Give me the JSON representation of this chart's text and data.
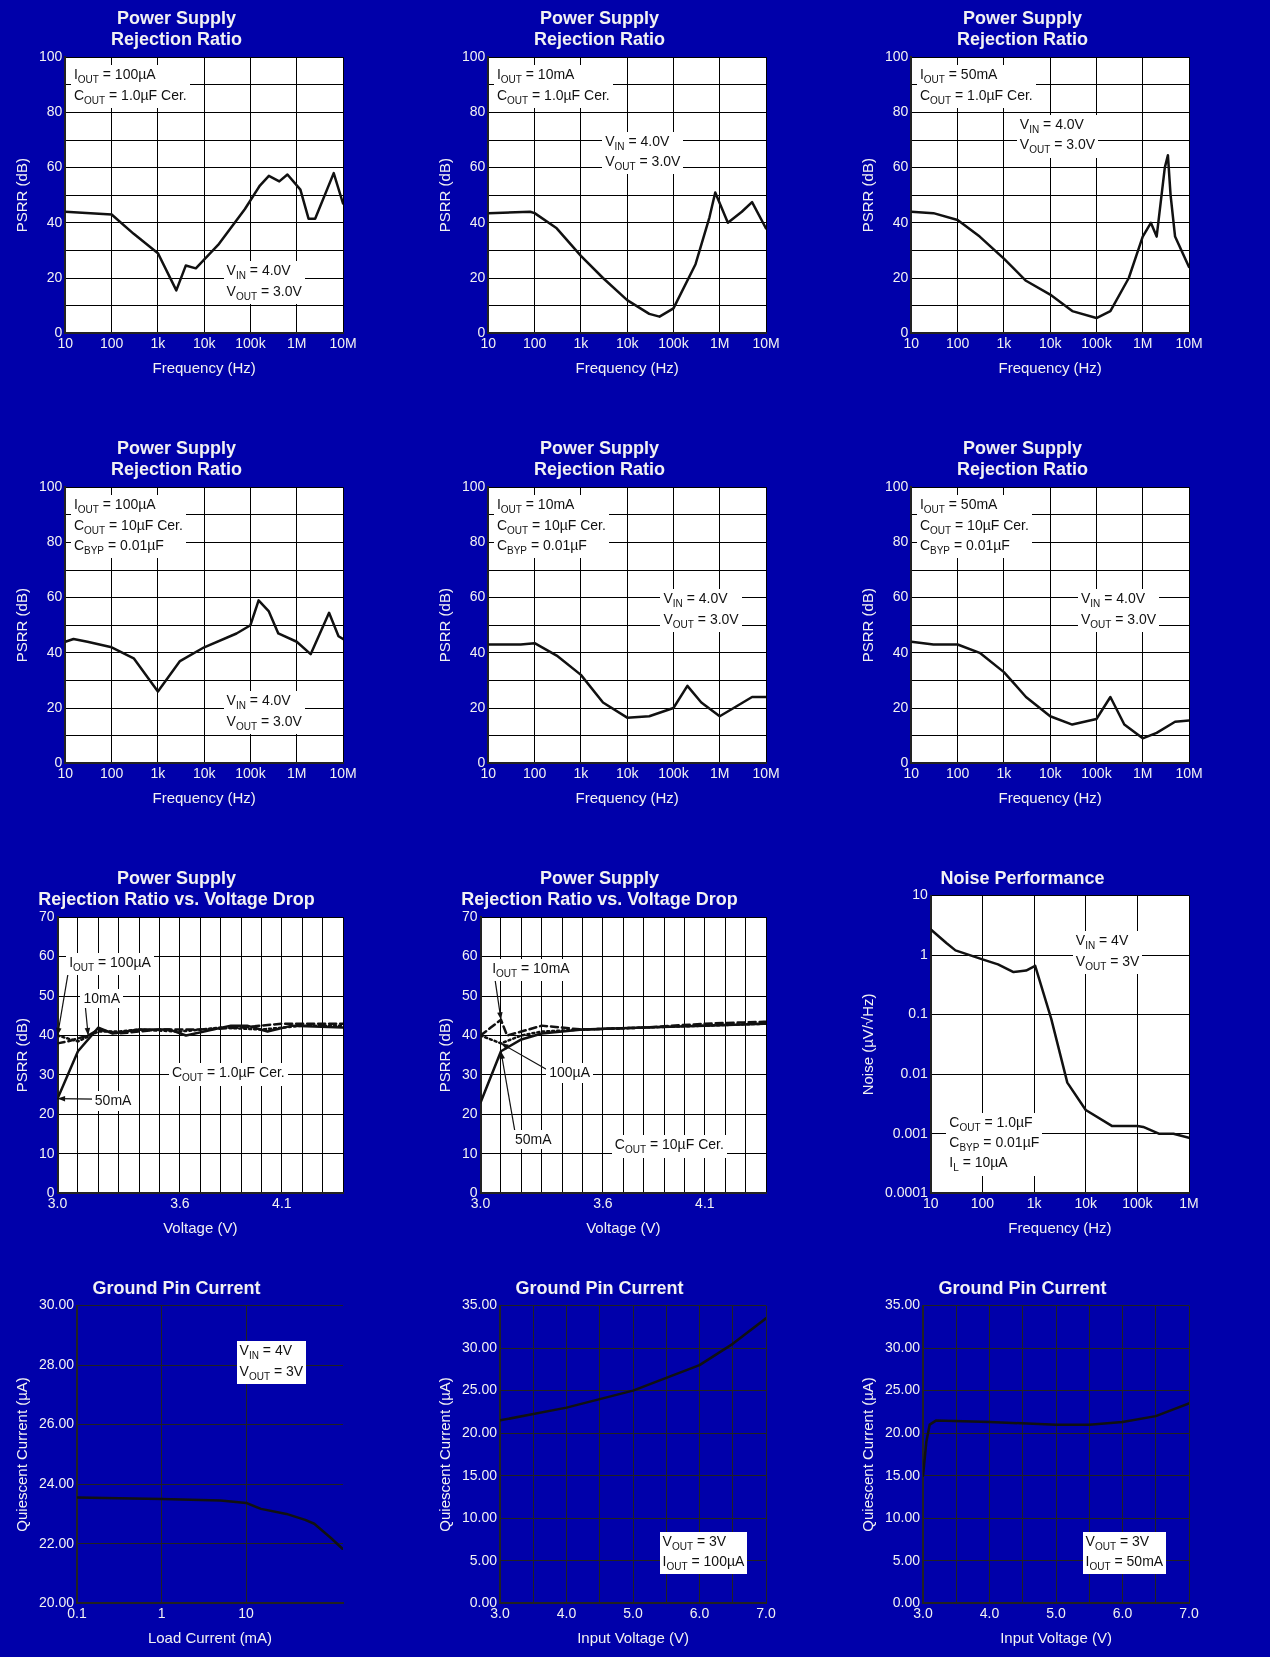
{
  "chart_data": [
    {
      "type": "line",
      "title": "Power Supply\nRejection Ratio",
      "xlabel": "Frequency (Hz)",
      "ylabel": "PSRR (dB)",
      "log": "x",
      "grid": true,
      "xlim": [
        10,
        10000000
      ],
      "ylim": [
        0,
        100
      ],
      "xticks": [
        10,
        100,
        {
          "value": 1000,
          "label": "1k"
        },
        {
          "value": 10000,
          "label": "10k"
        },
        {
          "value": 100000,
          "label": "100k"
        },
        {
          "value": 1000000,
          "label": "1M"
        },
        {
          "value": 10000000,
          "label": "10M"
        }
      ],
      "yticks": [
        0,
        {
          "value": 10,
          "label": null
        },
        20,
        {
          "value": 30,
          "label": null
        },
        40,
        {
          "value": 50,
          "label": null
        },
        60,
        {
          "value": 70,
          "label": null
        },
        80,
        {
          "value": 90,
          "label": null
        },
        100
      ],
      "annotations": [
        "I$_{OUT}$ = 100µA\nC$_{OUT}$ = 1.0µF Cer.",
        "V$_{IN}$ = 4.0V\nV$_{OUT}$ = 3.0V"
      ],
      "series": [
        {
          "color": "#111111",
          "x": [
            10,
            100,
            300,
            1000,
            2500,
            4000,
            6600,
            20000,
            76000,
            160000,
            250000,
            420000,
            630000,
            1200000,
            1800000,
            2500000,
            6300000,
            10000000
          ],
          "values": [
            44,
            43,
            36,
            29,
            15.5,
            24.5,
            23.5,
            32,
            45,
            53.5,
            57,
            55,
            57.5,
            52,
            41.5,
            41.5,
            58,
            47
          ]
        }
      ]
    },
    {
      "type": "line",
      "title": "Power Supply\nRejection Ratio",
      "xlabel": "Frequency (Hz)",
      "ylabel": "PSRR (dB)",
      "log": "x",
      "grid": true,
      "xlim": [
        10,
        10000000
      ],
      "ylim": [
        0,
        100
      ],
      "xticks": [
        10,
        100,
        {
          "value": 1000,
          "label": "1k"
        },
        {
          "value": 10000,
          "label": "10k"
        },
        {
          "value": 100000,
          "label": "100k"
        },
        {
          "value": 1000000,
          "label": "1M"
        },
        {
          "value": 10000000,
          "label": "10M"
        }
      ],
      "yticks": [
        0,
        {
          "value": 10,
          "label": null
        },
        20,
        {
          "value": 30,
          "label": null
        },
        40,
        {
          "value": 50,
          "label": null
        },
        60,
        {
          "value": 70,
          "label": null
        },
        80,
        {
          "value": 90,
          "label": null
        },
        100
      ],
      "annotations": [
        "I$_{OUT}$ = 10mA\nC$_{OUT}$ = 1.0µF Cer.",
        "V$_{IN}$ = 4.0V\nV$_{OUT}$ = 3.0V"
      ],
      "series": [
        {
          "color": "#111111",
          "x": [
            10,
            80,
            100,
            300,
            1000,
            3000,
            10000,
            30000,
            50000,
            100000,
            300000,
            600000,
            800000,
            1500000,
            3000000,
            5000000,
            10000000
          ],
          "values": [
            43.5,
            44,
            43.5,
            38,
            28,
            20,
            12,
            7,
            6,
            9,
            25,
            42,
            51,
            40,
            44,
            47.5,
            38
          ]
        }
      ]
    },
    {
      "type": "line",
      "title": "Power Supply\nRejection Ratio",
      "xlabel": "Frequency (Hz)",
      "ylabel": "PSRR (dB)",
      "log": "x",
      "grid": true,
      "xlim": [
        10,
        10000000
      ],
      "ylim": [
        0,
        100
      ],
      "xticks": [
        10,
        100,
        {
          "value": 1000,
          "label": "1k"
        },
        {
          "value": 10000,
          "label": "10k"
        },
        {
          "value": 100000,
          "label": "100k"
        },
        {
          "value": 1000000,
          "label": "1M"
        },
        {
          "value": 10000000,
          "label": "10M"
        }
      ],
      "yticks": [
        0,
        {
          "value": 10,
          "label": null
        },
        20,
        {
          "value": 30,
          "label": null
        },
        40,
        {
          "value": 50,
          "label": null
        },
        60,
        {
          "value": 70,
          "label": null
        },
        80,
        {
          "value": 90,
          "label": null
        },
        100
      ],
      "annotations": [
        "I$_{OUT}$ = 50mA\nC$_{OUT}$ = 1.0µF Cer.",
        "V$_{IN}$ = 4.0V\nV$_{OUT}$ = 3.0V"
      ],
      "series": [
        {
          "color": "#111111",
          "x": [
            10,
            30,
            100,
            300,
            1000,
            3000,
            10000,
            30000,
            100000,
            200000,
            500000,
            1000000,
            1500000,
            2000000,
            3000000,
            3500000,
            4000000,
            5000000,
            10000000
          ],
          "values": [
            44,
            43.5,
            41,
            35,
            27,
            19,
            14,
            8,
            5.5,
            8,
            20,
            35,
            40,
            35,
            60,
            64.5,
            50,
            35,
            24
          ]
        }
      ]
    },
    {
      "type": "line",
      "title": "Power Supply\nRejection Ratio",
      "xlabel": "Frequency (Hz)",
      "ylabel": "PSRR (dB)",
      "log": "x",
      "grid": true,
      "xlim": [
        10,
        10000000
      ],
      "ylim": [
        0,
        100
      ],
      "xticks": [
        10,
        100,
        {
          "value": 1000,
          "label": "1k"
        },
        {
          "value": 10000,
          "label": "10k"
        },
        {
          "value": 100000,
          "label": "100k"
        },
        {
          "value": 1000000,
          "label": "1M"
        },
        {
          "value": 10000000,
          "label": "10M"
        }
      ],
      "yticks": [
        0,
        {
          "value": 10,
          "label": null
        },
        20,
        {
          "value": 30,
          "label": null
        },
        40,
        {
          "value": 50,
          "label": null
        },
        60,
        {
          "value": 70,
          "label": null
        },
        80,
        {
          "value": 90,
          "label": null
        },
        100
      ],
      "annotations": [
        "I$_{OUT}$ = 100µA\nC$_{OUT}$ = 10µF Cer.\nC$_{BYP}$ = 0.01µF",
        "V$_{IN}$ = 4.0V\nV$_{OUT}$ = 3.0V"
      ],
      "series": [
        {
          "color": "#111111",
          "x": [
            10,
            15,
            30,
            100,
            300,
            1000,
            3000,
            10000,
            50000,
            100000,
            150000,
            250000,
            400000,
            1000000,
            2000000,
            5000000,
            8000000,
            10000000
          ],
          "values": [
            44,
            45,
            44,
            42,
            38,
            26,
            37,
            42,
            47,
            50,
            59,
            55,
            47,
            44,
            39.5,
            54.5,
            46,
            45
          ]
        }
      ]
    },
    {
      "type": "line",
      "title": "Power Supply\nRejection Ratio",
      "xlabel": "Frequency (Hz)",
      "ylabel": "PSRR (dB)",
      "log": "x",
      "grid": true,
      "xlim": [
        10,
        10000000
      ],
      "ylim": [
        0,
        100
      ],
      "xticks": [
        10,
        100,
        {
          "value": 1000,
          "label": "1k"
        },
        {
          "value": 10000,
          "label": "10k"
        },
        {
          "value": 100000,
          "label": "100k"
        },
        {
          "value": 1000000,
          "label": "1M"
        },
        {
          "value": 10000000,
          "label": "10M"
        }
      ],
      "yticks": [
        0,
        {
          "value": 10,
          "label": null
        },
        20,
        {
          "value": 30,
          "label": null
        },
        40,
        {
          "value": 50,
          "label": null
        },
        60,
        {
          "value": 70,
          "label": null
        },
        80,
        {
          "value": 90,
          "label": null
        },
        100
      ],
      "annotations": [
        "I$_{OUT}$ = 10mA\nC$_{OUT}$ = 10µF Cer.\nC$_{BYP}$ = 0.01µF",
        "V$_{IN}$ = 4.0V\nV$_{OUT}$ = 3.0V"
      ],
      "series": [
        {
          "color": "#111111",
          "x": [
            10,
            50,
            100,
            300,
            1000,
            3000,
            10000,
            30000,
            100000,
            200000,
            400000,
            1000000,
            2000000,
            5000000,
            10000000
          ],
          "values": [
            43,
            43,
            43.5,
            39,
            32,
            22,
            16.5,
            17,
            20,
            28,
            22,
            17,
            20,
            24,
            24
          ]
        }
      ]
    },
    {
      "type": "line",
      "title": "Power Supply\nRejection Ratio",
      "xlabel": "Frequency (Hz)",
      "ylabel": "PSRR (dB)",
      "log": "x",
      "grid": true,
      "xlim": [
        10,
        10000000
      ],
      "ylim": [
        0,
        100
      ],
      "xticks": [
        10,
        100,
        {
          "value": 1000,
          "label": "1k"
        },
        {
          "value": 10000,
          "label": "10k"
        },
        {
          "value": 100000,
          "label": "100k"
        },
        {
          "value": 1000000,
          "label": "1M"
        },
        {
          "value": 10000000,
          "label": "10M"
        }
      ],
      "yticks": [
        0,
        {
          "value": 10,
          "label": null
        },
        20,
        {
          "value": 30,
          "label": null
        },
        40,
        {
          "value": 50,
          "label": null
        },
        60,
        {
          "value": 70,
          "label": null
        },
        80,
        {
          "value": 90,
          "label": null
        },
        100
      ],
      "annotations": [
        "I$_{OUT}$ = 50mA\nC$_{OUT}$ = 10µF Cer.\nC$_{BYP}$ = 0.01µF",
        "V$_{IN}$ = 4.0V\nV$_{OUT}$ = 3.0V"
      ],
      "series": [
        {
          "color": "#111111",
          "x": [
            10,
            30,
            100,
            300,
            1000,
            3000,
            10000,
            30000,
            100000,
            200000,
            400000,
            1000000,
            2000000,
            5000000,
            10000000
          ],
          "values": [
            44,
            43,
            43,
            40,
            33,
            24,
            17,
            14,
            16,
            24,
            14,
            9,
            11,
            15,
            15.5
          ]
        }
      ]
    },
    {
      "type": "line",
      "title": "Power Supply\nRejection Ratio vs. Voltage Drop",
      "xlabel": "Voltage (V)",
      "ylabel": "PSRR (dB)",
      "grid": true,
      "xlim": [
        3.0,
        4.4
      ],
      "ylim": [
        0,
        70
      ],
      "xticks": [
        {
          "value": 3.0,
          "label": "3.0"
        },
        {
          "value": 3.1,
          "label": null
        },
        {
          "value": 3.2,
          "label": null
        },
        {
          "value": 3.3,
          "label": null
        },
        {
          "value": 3.4,
          "label": null
        },
        {
          "value": 3.5,
          "label": null
        },
        3.6,
        {
          "value": 3.7,
          "label": null
        },
        {
          "value": 3.8,
          "label": null
        },
        {
          "value": 3.9,
          "label": null
        },
        {
          "value": 4.0,
          "label": null
        },
        4.1,
        {
          "value": 4.2,
          "label": null
        },
        {
          "value": 4.3,
          "label": null
        },
        {
          "value": 4.4,
          "label": null
        }
      ],
      "yticks": [
        0,
        10,
        20,
        30,
        40,
        50,
        60,
        70
      ],
      "annotations": [
        "C$_{OUT}$ = 1.0µF Cer."
      ],
      "series": [
        {
          "name": "I$_{OUT}$ = 100µA",
          "color": "#111111",
          "line_style": "dotted",
          "x": [
            3.0,
            3.1,
            3.2,
            3.3,
            3.4,
            3.6,
            3.8,
            4.0,
            4.2,
            4.4
          ],
          "values": [
            40,
            38.5,
            41,
            41,
            41.5,
            41,
            42,
            41.5,
            42.5,
            42.5
          ]
        },
        {
          "name": "10mA",
          "color": "#111111",
          "line_style": "dashed",
          "x": [
            3.0,
            3.05,
            3.15,
            3.2,
            3.3,
            3.5,
            3.7,
            3.9,
            4.1,
            4.4
          ],
          "values": [
            38,
            38.5,
            40,
            41.5,
            40.5,
            41.5,
            41.5,
            42,
            43,
            43
          ]
        },
        {
          "name": "50mA",
          "color": "#111111",
          "line_style": "solid",
          "x": [
            3.0,
            3.1,
            3.2,
            3.27,
            3.4,
            3.55,
            3.63,
            3.85,
            3.93,
            4.03,
            4.15,
            4.4
          ],
          "values": [
            24,
            36,
            42,
            40.5,
            41.5,
            41.5,
            40,
            42.5,
            42.5,
            41,
            42.5,
            42
          ]
        }
      ]
    },
    {
      "type": "line",
      "title": "Power Supply\nRejection Ratio vs. Voltage Drop",
      "xlabel": "Voltage (V)",
      "ylabel": "PSRR (dB)",
      "grid": true,
      "xlim": [
        3.0,
        4.4
      ],
      "ylim": [
        0,
        70
      ],
      "xticks": [
        {
          "value": 3.0,
          "label": "3.0"
        },
        {
          "value": 3.1,
          "label": null
        },
        {
          "value": 3.2,
          "label": null
        },
        {
          "value": 3.3,
          "label": null
        },
        {
          "value": 3.4,
          "label": null
        },
        {
          "value": 3.5,
          "label": null
        },
        3.6,
        {
          "value": 3.7,
          "label": null
        },
        {
          "value": 3.8,
          "label": null
        },
        {
          "value": 3.9,
          "label": null
        },
        {
          "value": 4.0,
          "label": null
        },
        4.1,
        {
          "value": 4.2,
          "label": null
        },
        {
          "value": 4.3,
          "label": null
        },
        {
          "value": 4.4,
          "label": null
        }
      ],
      "yticks": [
        0,
        10,
        20,
        30,
        40,
        50,
        60,
        70
      ],
      "annotations": [
        "C$_{OUT}$ = 10µF Cer."
      ],
      "series": [
        {
          "name": "I$_{OUT}$ = 10mA",
          "color": "#111111",
          "line_style": "dashed",
          "x": [
            3.0,
            3.05,
            3.1,
            3.13,
            3.2,
            3.3,
            3.5,
            3.8,
            4.1,
            4.4
          ],
          "values": [
            40,
            42,
            44,
            40,
            41,
            42.5,
            41.5,
            42,
            43,
            43.5
          ]
        },
        {
          "name": "100µA",
          "color": "#111111",
          "line_style": "dotted",
          "x": [
            3.0,
            3.1,
            3.2,
            3.3,
            3.5,
            3.8,
            4.1,
            4.4
          ],
          "values": [
            40,
            38,
            40,
            41,
            41.5,
            42,
            42.5,
            43
          ]
        },
        {
          "name": "50mA",
          "color": "#111111",
          "line_style": "solid",
          "x": [
            3.0,
            3.1,
            3.2,
            3.3,
            3.5,
            3.8,
            4.1,
            4.4
          ],
          "values": [
            23,
            36,
            39,
            40.5,
            41.5,
            42,
            42.5,
            43
          ]
        }
      ]
    },
    {
      "type": "line",
      "title": "Noise Performance",
      "xlabel": "Frequency (Hz)",
      "ylabel": "Noise (µV/√Hz)",
      "log": "xy",
      "grid": true,
      "xlim": [
        10,
        1000000
      ],
      "ylim": [
        0.0001,
        10
      ],
      "xticks": [
        10,
        100,
        {
          "value": 1000,
          "label": "1k"
        },
        {
          "value": 10000,
          "label": "10k"
        },
        {
          "value": 100000,
          "label": "100k"
        },
        {
          "value": 1000000,
          "label": "1M"
        }
      ],
      "yticks": [
        0.0001,
        0.001,
        0.01,
        0.1,
        1,
        10
      ],
      "annotations": [
        "V$_{IN}$ = 4V\nV$_{OUT}$ = 3V",
        "C$_{OUT}$ = 1.0µF\nC$_{BYP}$ = 0.01µF\nI$_{L}$ = 10µA"
      ],
      "series": [
        {
          "color": "#111111",
          "x": [
            10,
            20,
            30,
            100,
            200,
            400,
            700,
            1050,
            2150,
            4400,
            10000,
            32000,
            100000,
            130000,
            260000,
            500000,
            1000000
          ],
          "values": [
            2.7,
            1.6,
            1.2,
            0.85,
            0.7,
            0.52,
            0.55,
            0.66,
            0.085,
            0.0072,
            0.0025,
            0.00135,
            0.00135,
            0.0013,
            0.001,
            0.001,
            0.00085
          ]
        }
      ]
    },
    {
      "type": "line",
      "title": "Ground Pin Current",
      "xlabel": "Load Current (mA)",
      "ylabel": "Quiescent Current (µA)",
      "log": "x",
      "grid": true,
      "xlim": [
        0.1,
        140
      ],
      "ylim": [
        20,
        30
      ],
      "xticks": [
        0.1,
        1,
        10
      ],
      "yticks": [
        {
          "value": 20,
          "label": "20.00"
        },
        {
          "value": 22,
          "label": "22.00"
        },
        {
          "value": 24,
          "label": "24.00"
        },
        {
          "value": 26,
          "label": "26.00"
        },
        {
          "value": 28,
          "label": "28.00"
        },
        {
          "value": 30,
          "label": "30.00"
        }
      ],
      "annotations": [
        "V$_{IN}$ = 4V\nV$_{OUT}$ = 3V"
      ],
      "series": [
        {
          "color": "#111111",
          "x": [
            0.1,
            1,
            5,
            10,
            15,
            30,
            50,
            64,
            100,
            138
          ],
          "values": [
            23.55,
            23.5,
            23.45,
            23.37,
            23.17,
            23,
            22.8,
            22.67,
            22.2,
            21.83
          ]
        }
      ]
    },
    {
      "type": "line",
      "title": "Ground Pin Current",
      "xlabel": "Input Voltage (V)",
      "ylabel": "Quiescent Current (µA)",
      "grid": true,
      "xlim": [
        3,
        7
      ],
      "ylim": [
        0,
        35
      ],
      "xticks": [
        {
          "value": 3,
          "label": "3.0"
        },
        {
          "value": 3.5,
          "label": null
        },
        {
          "value": 4,
          "label": "4.0"
        },
        {
          "value": 4.5,
          "label": null
        },
        {
          "value": 5,
          "label": "5.0"
        },
        {
          "value": 5.5,
          "label": null
        },
        {
          "value": 6,
          "label": "6.0"
        },
        {
          "value": 6.5,
          "label": null
        },
        {
          "value": 7,
          "label": "7.0"
        }
      ],
      "yticks": [
        {
          "value": 0,
          "label": "0.00"
        },
        {
          "value": 5,
          "label": "5.00"
        },
        {
          "value": 10,
          "label": "10.00"
        },
        {
          "value": 15,
          "label": "15.00"
        },
        {
          "value": 20,
          "label": "20.00"
        },
        {
          "value": 25,
          "label": "25.00"
        },
        {
          "value": 30,
          "label": "30.00"
        },
        {
          "value": 35,
          "label": "35.00"
        }
      ],
      "annotations": [
        "V$_{OUT}$ = 3V\nI$_{OUT}$ = 100µA"
      ],
      "series": [
        {
          "color": "#111111",
          "x": [
            3,
            4,
            5,
            5.5,
            6,
            6.5,
            7
          ],
          "values": [
            21.5,
            23,
            25,
            26.5,
            28,
            30.5,
            33.5
          ]
        }
      ]
    },
    {
      "type": "line",
      "title": "Ground Pin Current",
      "xlabel": "Input Voltage (V)",
      "ylabel": "Quiescent Current (µA)",
      "grid": true,
      "xlim": [
        3,
        7
      ],
      "ylim": [
        0,
        35
      ],
      "xticks": [
        {
          "value": 3,
          "label": "3.0"
        },
        {
          "value": 3.5,
          "label": null
        },
        {
          "value": 4,
          "label": "4.0"
        },
        {
          "value": 4.5,
          "label": null
        },
        {
          "value": 5,
          "label": "5.0"
        },
        {
          "value": 5.5,
          "label": null
        },
        {
          "value": 6,
          "label": "6.0"
        },
        {
          "value": 6.5,
          "label": null
        },
        {
          "value": 7,
          "label": "7.0"
        }
      ],
      "yticks": [
        {
          "value": 0,
          "label": "0.00"
        },
        {
          "value": 5,
          "label": "5.00"
        },
        {
          "value": 10,
          "label": "10.00"
        },
        {
          "value": 15,
          "label": "15.00"
        },
        {
          "value": 20,
          "label": "20.00"
        },
        {
          "value": 25,
          "label": "25.00"
        },
        {
          "value": 30,
          "label": "30.00"
        },
        {
          "value": 35,
          "label": "35.00"
        }
      ],
      "annotations": [
        "V$_{OUT}$ = 3V\nI$_{OUT}$ = 50mA"
      ],
      "series": [
        {
          "color": "#111111",
          "x": [
            3,
            3.05,
            3.1,
            3.2,
            4,
            5,
            5.5,
            6,
            6.5,
            7
          ],
          "values": [
            15,
            19,
            21,
            21.5,
            21.3,
            21,
            21,
            21.3,
            22,
            23.5
          ]
        }
      ]
    }
  ]
}
